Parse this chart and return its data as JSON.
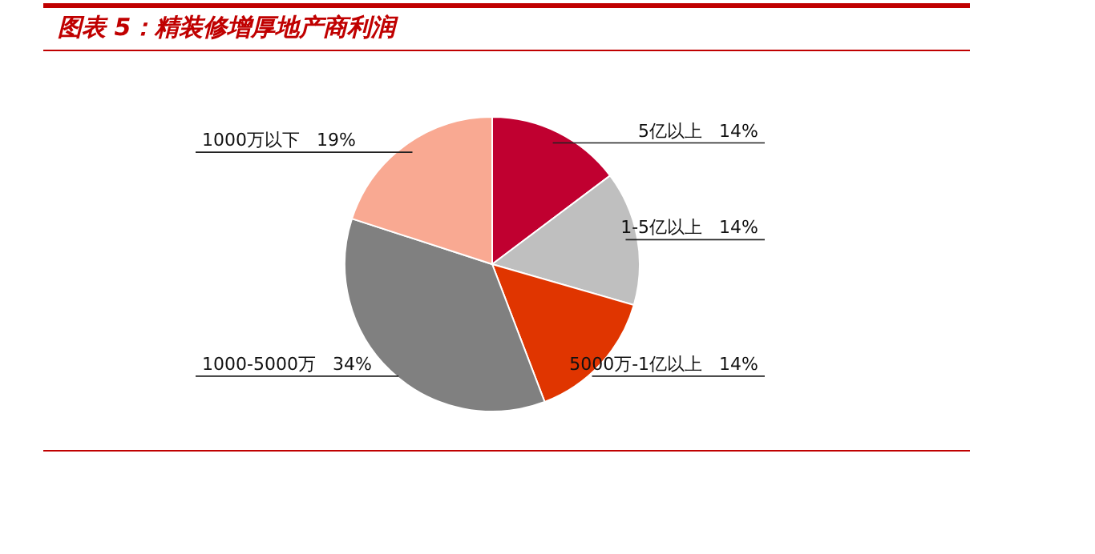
{
  "chart_data": {
    "type": "pie",
    "title": "图表 5：精装修增厚地产商利润",
    "categories": [
      "5亿以上",
      "1-5亿以上",
      "5000万-1亿以上",
      "1000-5000万",
      "1000万以下"
    ],
    "values": [
      14,
      14,
      14,
      34,
      19
    ],
    "value_labels": [
      "14%",
      "14%",
      "14%",
      "34%",
      "19%"
    ],
    "colors": [
      "#c00030",
      "#bfbfbf",
      "#e03500",
      "#808080",
      "#f9a992"
    ]
  }
}
